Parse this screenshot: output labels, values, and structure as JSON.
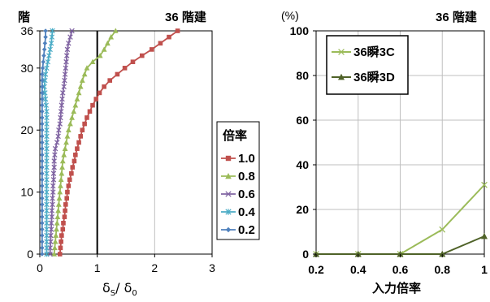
{
  "chart_data": [
    {
      "type": "line",
      "title": "36 階建",
      "ylabel": "階",
      "xlabel": "δS/δ0",
      "xlim": [
        0,
        3
      ],
      "ylim": [
        0,
        36
      ],
      "x_ticks": [
        "0",
        "1",
        "2",
        "3"
      ],
      "y_ticks": [
        "0",
        "10",
        "20",
        "30",
        "36"
      ],
      "reference_line_x": 1,
      "grid": "vertical",
      "legend_title": "倍率",
      "legend_position": "right",
      "series": [
        {
          "name": "1.0",
          "color": "#c0504d",
          "marker": "square",
          "floors": [
            0,
            1,
            2,
            3,
            4,
            5,
            6,
            7,
            8,
            9,
            10,
            11,
            12,
            13,
            14,
            15,
            16,
            17,
            18,
            19,
            20,
            21,
            22,
            23,
            24,
            25,
            26,
            27,
            28,
            29,
            30,
            31,
            32,
            33,
            34,
            35,
            36
          ],
          "values": [
            0.35,
            0.36,
            0.37,
            0.38,
            0.4,
            0.41,
            0.43,
            0.44,
            0.45,
            0.47,
            0.48,
            0.5,
            0.52,
            0.55,
            0.57,
            0.6,
            0.62,
            0.65,
            0.68,
            0.71,
            0.74,
            0.78,
            0.82,
            0.87,
            0.92,
            0.98,
            1.04,
            1.12,
            1.22,
            1.35,
            1.48,
            1.62,
            1.78,
            1.95,
            2.1,
            2.25,
            2.4
          ]
        },
        {
          "name": "0.8",
          "color": "#9bbb59",
          "marker": "triangle",
          "floors": [
            0,
            1,
            2,
            3,
            4,
            5,
            6,
            7,
            8,
            9,
            10,
            11,
            12,
            13,
            14,
            15,
            16,
            17,
            18,
            19,
            20,
            21,
            22,
            23,
            24,
            25,
            26,
            27,
            28,
            29,
            30,
            31,
            32,
            33,
            34,
            35,
            36
          ],
          "values": [
            0.25,
            0.26,
            0.27,
            0.28,
            0.29,
            0.3,
            0.31,
            0.32,
            0.33,
            0.34,
            0.35,
            0.36,
            0.37,
            0.38,
            0.39,
            0.4,
            0.42,
            0.44,
            0.46,
            0.48,
            0.5,
            0.53,
            0.56,
            0.59,
            0.62,
            0.65,
            0.68,
            0.71,
            0.74,
            0.78,
            0.82,
            0.92,
            1.05,
            1.12,
            1.18,
            1.24,
            1.32
          ]
        },
        {
          "name": "0.6",
          "color": "#8064a2",
          "marker": "x",
          "floors": [
            0,
            1,
            2,
            3,
            4,
            5,
            6,
            7,
            8,
            9,
            10,
            11,
            12,
            13,
            14,
            15,
            16,
            17,
            18,
            19,
            20,
            21,
            22,
            23,
            24,
            25,
            26,
            27,
            28,
            29,
            30,
            31,
            32,
            33,
            34,
            35,
            36
          ],
          "values": [
            0.18,
            0.18,
            0.19,
            0.19,
            0.2,
            0.2,
            0.21,
            0.21,
            0.22,
            0.22,
            0.23,
            0.23,
            0.24,
            0.24,
            0.25,
            0.25,
            0.26,
            0.27,
            0.3,
            0.32,
            0.33,
            0.35,
            0.36,
            0.37,
            0.38,
            0.39,
            0.4,
            0.42,
            0.43,
            0.44,
            0.45,
            0.46,
            0.47,
            0.48,
            0.5,
            0.53,
            0.56
          ]
        },
        {
          "name": "0.4",
          "color": "#4bacc6",
          "marker": "asterisk",
          "floors": [
            0,
            1,
            2,
            3,
            4,
            5,
            6,
            7,
            8,
            9,
            10,
            11,
            12,
            13,
            14,
            15,
            16,
            17,
            18,
            19,
            20,
            21,
            22,
            23,
            24,
            25,
            26,
            27,
            28,
            29,
            30,
            31,
            32,
            33,
            34,
            35,
            36
          ],
          "values": [
            0.12,
            0.12,
            0.12,
            0.12,
            0.12,
            0.12,
            0.12,
            0.12,
            0.12,
            0.12,
            0.12,
            0.12,
            0.12,
            0.12,
            0.12,
            0.12,
            0.12,
            0.12,
            0.12,
            0.12,
            0.12,
            0.12,
            0.12,
            0.12,
            0.11,
            0.1,
            0.09,
            0.08,
            0.09,
            0.1,
            0.12,
            0.14,
            0.16,
            0.18,
            0.2,
            0.21,
            0.22
          ]
        },
        {
          "name": "0.2",
          "color": "#4f81bd",
          "marker": "diamond",
          "floors": [
            0,
            1,
            2,
            3,
            4,
            5,
            6,
            7,
            8,
            9,
            10,
            11,
            12,
            13,
            14,
            15,
            16,
            17,
            18,
            19,
            20,
            21,
            22,
            23,
            24,
            25,
            26,
            27,
            28,
            29,
            30,
            31,
            32,
            33,
            34,
            35,
            36
          ],
          "values": [
            0.04,
            0.04,
            0.04,
            0.04,
            0.04,
            0.04,
            0.04,
            0.04,
            0.04,
            0.04,
            0.04,
            0.04,
            0.04,
            0.04,
            0.04,
            0.04,
            0.04,
            0.04,
            0.04,
            0.04,
            0.04,
            0.04,
            0.04,
            0.04,
            0.04,
            0.04,
            0.04,
            0.04,
            0.04,
            0.04,
            0.05,
            0.06,
            0.07,
            0.08,
            0.09,
            0.1,
            0.1
          ]
        }
      ]
    },
    {
      "type": "line",
      "title": "36 階建",
      "ylabel": "(%)",
      "xlabel": "入力倍率",
      "xlim": [
        0.2,
        1
      ],
      "ylim": [
        0,
        100
      ],
      "x_ticks": [
        "0.2",
        "0.4",
        "0.6",
        "0.8",
        "1"
      ],
      "y_ticks": [
        "0",
        "20",
        "40",
        "60",
        "80",
        "100"
      ],
      "grid": "both",
      "legend_position": "top-left",
      "x": [
        0.2,
        0.4,
        0.6,
        0.8,
        1.0
      ],
      "series": [
        {
          "name": "36瞬3C",
          "color": "#9bbb59",
          "marker": "x",
          "values": [
            0,
            0,
            0,
            11,
            31
          ]
        },
        {
          "name": "36瞬3D",
          "color": "#4f6228",
          "marker": "triangle",
          "values": [
            0,
            0,
            0,
            0,
            8
          ]
        }
      ]
    }
  ]
}
